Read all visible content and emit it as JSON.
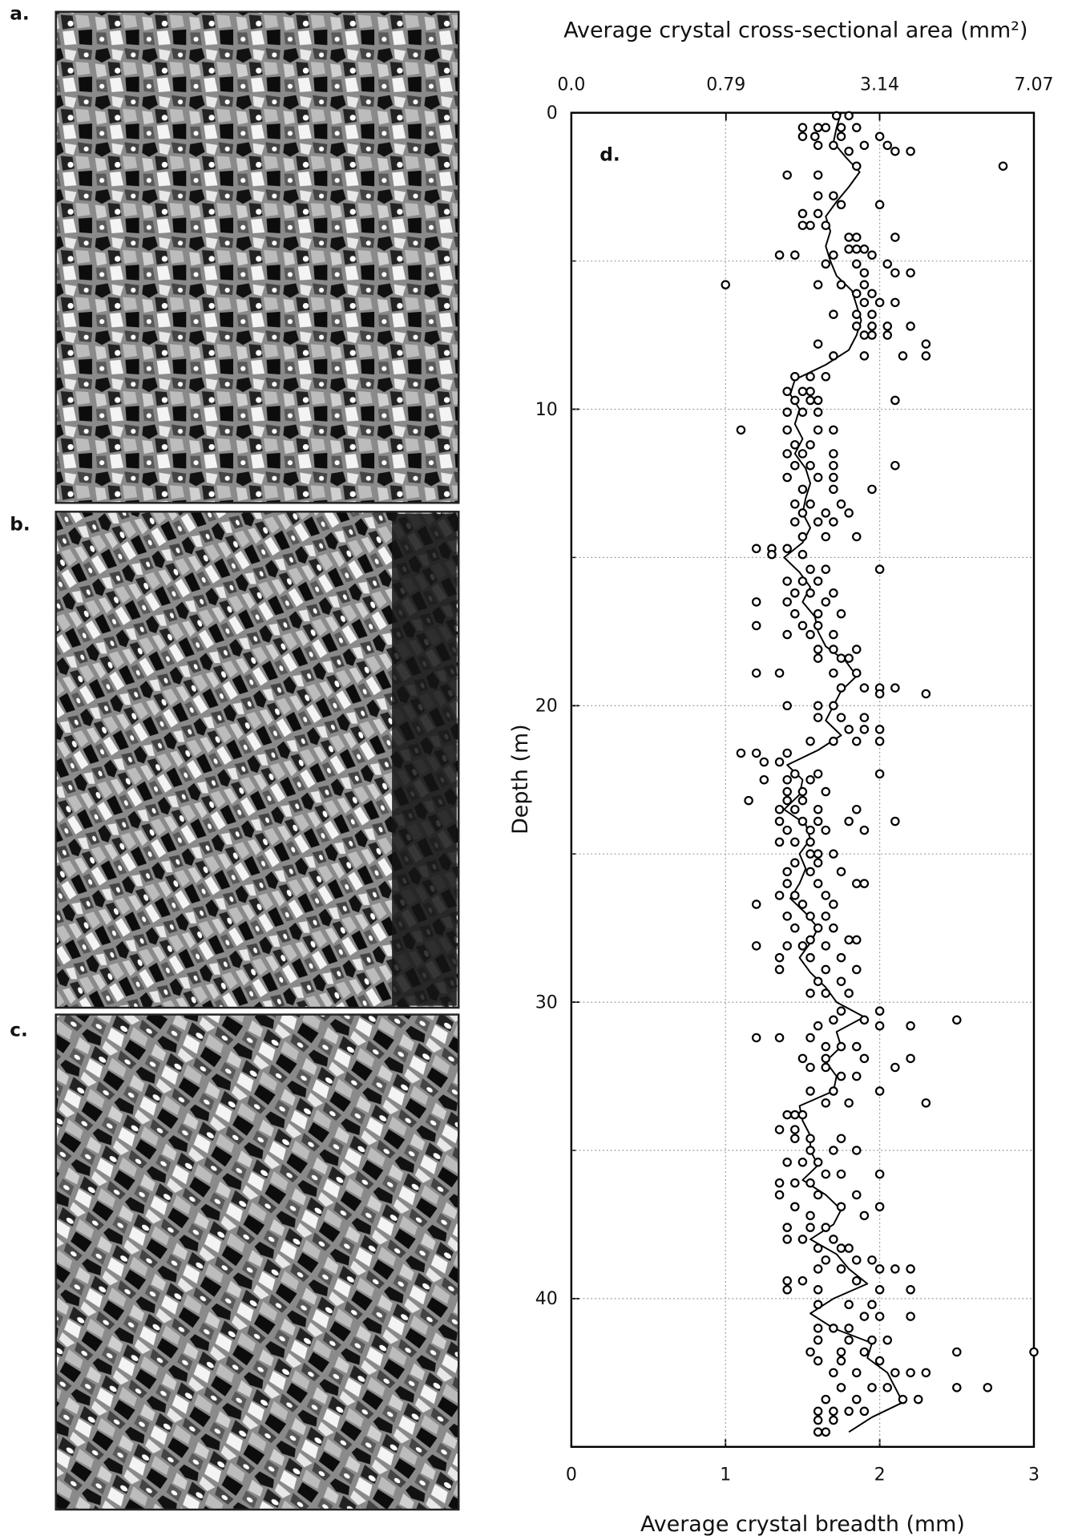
{
  "panel_labels": [
    "a.",
    "b.",
    "c."
  ],
  "chart_data": {
    "type": "profile",
    "panel_label": "d.",
    "title": "Average crystal cross-sectional area (mm²)",
    "xlabel": "Average crystal breadth (mm)",
    "ylabel": "Depth (m)",
    "xlim": [
      0,
      3
    ],
    "xticks": [
      0,
      1,
      2,
      3
    ],
    "x2lim": [
      0,
      7.07
    ],
    "x2ticks": [
      {
        "value": 0,
        "label": "0.0"
      },
      0.79,
      3.14,
      7.07
    ],
    "ylim": [
      0,
      45
    ],
    "yticks": [
      0,
      10,
      20,
      30,
      40
    ],
    "yminorticks": [
      5,
      15,
      25,
      35
    ],
    "y_inverted": true,
    "grid": true,
    "series": [
      {
        "type": "line",
        "color": "#000000",
        "x": [
          1.75,
          1.72,
          1.7,
          1.78,
          1.87,
          1.8,
          1.72,
          1.65,
          1.68,
          1.65,
          1.68,
          1.72,
          1.82,
          1.85,
          1.88,
          1.85,
          1.8,
          1.65,
          1.45,
          1.42,
          1.48,
          1.45,
          1.5,
          1.45,
          1.52,
          1.55,
          1.52,
          1.5,
          1.55,
          1.5,
          1.38,
          1.48,
          1.55,
          1.5,
          1.58,
          1.6,
          1.65,
          1.78,
          1.85,
          1.75,
          1.7,
          1.65,
          1.75,
          1.6,
          1.4,
          1.5,
          1.48,
          1.38,
          1.52,
          1.55,
          1.48,
          1.52,
          1.48,
          1.42,
          1.52,
          1.6,
          1.55,
          1.48,
          1.55,
          1.65,
          1.72,
          1.9,
          1.72,
          1.75,
          1.65,
          1.72,
          1.7,
          1.48,
          1.5,
          1.55,
          1.55,
          1.6,
          1.5,
          1.65,
          1.75,
          1.7,
          1.55,
          1.72,
          1.8,
          1.92,
          1.7,
          1.55,
          1.7,
          1.95,
          1.92,
          2.05,
          2.1,
          2.15,
          1.95,
          1.8
        ],
        "y": [
          0,
          0.5,
          1,
          1.5,
          2,
          2.5,
          3,
          3.5,
          4,
          4.5,
          5,
          5.5,
          6,
          6.5,
          7,
          7.5,
          8,
          8.5,
          9,
          9.5,
          10,
          10.5,
          11,
          11.5,
          12,
          12.5,
          13,
          13.5,
          14,
          14.5,
          15,
          15.5,
          16,
          16.5,
          17,
          17.5,
          18,
          18.5,
          19,
          19.5,
          20,
          20.5,
          21,
          21.5,
          22,
          22.5,
          23,
          23.5,
          24,
          24.5,
          25,
          25.5,
          26,
          26.5,
          27,
          27.5,
          28,
          28.5,
          29,
          29.5,
          30,
          30.5,
          31,
          31.5,
          32,
          32.5,
          33,
          33.5,
          34,
          34.5,
          35,
          35.5,
          36,
          36.5,
          37,
          37.5,
          38,
          38.5,
          39,
          39.5,
          40,
          40.5,
          41,
          41.5,
          42,
          42.5,
          43,
          43.5,
          44,
          44.5
        ]
      },
      {
        "type": "scatter",
        "marker": "open-circle",
        "color": "#000000",
        "x": [
          1.72,
          1.8,
          1.5,
          1.6,
          1.65,
          1.75,
          1.85,
          1.5,
          1.58,
          1.75,
          2.0,
          1.6,
          1.7,
          1.9,
          2.05,
          2.2,
          2.1,
          1.8,
          2.8,
          1.85,
          1.4,
          1.6,
          1.6,
          1.7,
          2.0,
          1.75,
          1.5,
          1.6,
          1.5,
          1.55,
          1.65,
          1.8,
          1.85,
          2.1,
          1.8,
          1.85,
          1.9,
          1.35,
          1.45,
          1.7,
          1.95,
          1.65,
          1.85,
          2.05,
          2.2,
          2.1,
          1.9,
          1.0,
          1.6,
          1.75,
          1.9,
          1.85,
          1.95,
          1.9,
          2.0,
          2.1,
          1.7,
          1.85,
          1.95,
          1.85,
          1.95,
          2.05,
          2.2,
          1.9,
          1.95,
          2.05,
          1.6,
          2.3,
          1.7,
          1.9,
          2.15,
          2.3,
          1.45,
          1.55,
          1.65,
          1.4,
          1.5,
          1.55,
          1.45,
          1.55,
          1.6,
          2.1,
          1.4,
          1.5,
          1.6,
          1.1,
          1.4,
          1.6,
          1.7,
          1.45,
          1.55,
          1.4,
          1.5,
          1.7,
          1.45,
          1.55,
          1.7,
          2.1,
          1.4,
          1.6,
          1.7,
          1.5,
          1.7,
          1.95,
          1.45,
          1.55,
          1.75,
          1.5,
          1.65,
          1.8,
          1.45,
          1.6,
          1.7,
          1.5,
          1.65,
          1.85,
          1.2,
          1.3,
          1.4,
          1.3,
          1.5,
          1.55,
          1.65,
          2.0,
          1.4,
          1.5,
          1.6,
          1.45,
          1.55,
          1.7,
          1.2,
          1.4,
          1.65,
          1.45,
          1.6,
          1.75,
          1.2,
          1.5,
          1.6,
          1.4,
          1.55,
          1.7,
          1.6,
          1.7,
          1.85,
          1.6,
          1.75,
          1.8,
          1.2,
          1.35,
          1.7,
          1.85,
          1.75,
          1.9,
          2.0,
          2.1,
          2.0,
          2.3,
          1.4,
          1.6,
          1.7,
          1.6,
          1.75,
          1.9,
          1.8,
          1.9,
          2.0,
          1.55,
          1.7,
          1.85,
          2.0,
          1.1,
          1.2,
          1.4,
          1.25,
          1.35,
          1.45,
          1.6,
          2.0,
          1.25,
          1.4,
          1.55,
          1.4,
          1.5,
          1.65,
          1.15,
          1.4,
          1.5,
          1.35,
          1.45,
          1.6,
          1.85,
          1.35,
          1.5,
          1.6,
          1.8,
          2.1,
          1.4,
          1.55,
          1.65,
          1.9,
          1.35,
          1.45,
          1.55,
          1.55,
          1.6,
          1.7,
          1.45,
          1.6,
          1.4,
          1.55,
          1.75,
          1.4,
          1.6,
          1.85,
          1.9,
          1.35,
          1.45,
          1.65,
          1.2,
          1.5,
          1.7,
          1.4,
          1.55,
          1.65,
          1.45,
          1.6,
          1.7,
          1.55,
          1.8,
          1.85,
          1.2,
          1.4,
          1.5,
          1.65,
          1.35,
          1.55,
          1.75,
          1.35,
          1.65,
          1.85,
          1.6,
          1.75,
          1.55,
          1.65,
          1.8,
          1.75,
          2.0,
          1.7,
          1.9,
          2.5,
          1.6,
          2.0,
          2.2,
          1.2,
          1.35,
          1.55,
          1.65,
          1.75,
          1.85,
          1.5,
          1.65,
          1.9,
          2.2,
          1.55,
          1.65,
          2.1,
          1.75,
          1.85,
          1.55,
          1.7,
          2.0,
          1.65,
          1.8,
          2.3,
          1.4,
          1.45,
          1.5,
          1.35,
          1.45,
          1.45,
          1.55,
          1.75,
          1.55,
          1.7,
          1.85,
          1.4,
          1.5,
          1.6,
          1.65,
          1.75,
          2.0,
          1.35,
          1.45,
          1.55,
          1.35,
          1.6,
          1.85,
          1.45,
          1.75,
          2.0,
          1.55,
          1.9,
          1.4,
          1.55,
          1.65,
          1.4,
          1.5,
          1.7,
          1.6,
          1.75,
          1.8,
          1.65,
          1.85,
          1.95,
          1.6,
          1.75,
          2.0,
          2.1,
          2.2,
          1.4,
          1.5,
          1.85,
          1.4,
          1.6,
          2.0,
          2.2,
          1.6,
          1.8,
          1.95,
          1.9,
          2.0,
          2.2,
          1.6,
          1.7,
          1.8,
          1.6,
          1.8,
          1.95,
          2.05,
          1.55,
          1.75,
          1.9,
          2.5,
          3.0,
          1.6,
          1.75,
          2.0,
          1.7,
          1.85,
          2.1,
          2.2,
          2.3,
          1.75,
          1.95,
          2.05,
          2.5,
          2.7,
          1.65,
          1.85,
          2.15,
          2.25,
          1.6,
          1.7,
          1.8,
          1.9,
          1.6,
          1.7,
          1.6,
          1.65
        ],
        "y": [
          0.1,
          0.1,
          0.5,
          0.5,
          0.5,
          0.5,
          0.5,
          0.8,
          0.8,
          0.8,
          0.8,
          1.1,
          1.1,
          1.1,
          1.1,
          1.3,
          1.3,
          1.3,
          1.8,
          1.8,
          2.1,
          2.1,
          2.8,
          2.8,
          3.1,
          3.1,
          3.4,
          3.4,
          3.8,
          3.8,
          3.8,
          4.2,
          4.2,
          4.2,
          4.6,
          4.6,
          4.6,
          4.8,
          4.8,
          4.8,
          4.8,
          5.1,
          5.1,
          5.1,
          5.4,
          5.4,
          5.4,
          5.8,
          5.8,
          5.8,
          5.8,
          6.1,
          6.1,
          6.4,
          6.4,
          6.4,
          6.8,
          6.8,
          6.8,
          7.2,
          7.2,
          7.2,
          7.2,
          7.5,
          7.5,
          7.5,
          7.8,
          7.8,
          8.2,
          8.2,
          8.2,
          8.2,
          8.9,
          8.9,
          8.9,
          9.4,
          9.4,
          9.4,
          9.7,
          9.7,
          9.7,
          9.7,
          10.1,
          10.1,
          10.1,
          10.7,
          10.7,
          10.7,
          10.7,
          11.2,
          11.2,
          11.5,
          11.5,
          11.5,
          11.9,
          11.9,
          11.9,
          11.9,
          12.3,
          12.3,
          12.3,
          12.7,
          12.7,
          12.7,
          13.2,
          13.2,
          13.2,
          13.5,
          13.5,
          13.5,
          13.8,
          13.8,
          13.8,
          14.3,
          14.3,
          14.3,
          14.7,
          14.7,
          14.7,
          14.9,
          14.9,
          15.4,
          15.4,
          15.4,
          15.8,
          15.8,
          15.8,
          16.2,
          16.2,
          16.2,
          16.5,
          16.5,
          16.5,
          16.9,
          16.9,
          16.9,
          17.3,
          17.3,
          17.3,
          17.6,
          17.6,
          17.6,
          18.1,
          18.1,
          18.1,
          18.4,
          18.4,
          18.4,
          18.9,
          18.9,
          18.9,
          18.9,
          19.4,
          19.4,
          19.4,
          19.4,
          19.6,
          19.6,
          20,
          20,
          20,
          20.4,
          20.4,
          20.4,
          20.8,
          20.8,
          20.8,
          21.2,
          21.2,
          21.2,
          21.2,
          21.6,
          21.6,
          21.6,
          21.9,
          21.9,
          22.3,
          22.3,
          22.3,
          22.5,
          22.5,
          22.5,
          22.9,
          22.9,
          22.9,
          23.2,
          23.2,
          23.2,
          23.5,
          23.5,
          23.5,
          23.5,
          23.9,
          23.9,
          23.9,
          23.9,
          23.9,
          24.2,
          24.2,
          24.2,
          24.2,
          24.6,
          24.6,
          24.6,
          25,
          25,
          25,
          25.3,
          25.3,
          25.6,
          25.6,
          25.6,
          26,
          26,
          26,
          26,
          26.4,
          26.4,
          26.4,
          26.7,
          26.7,
          26.7,
          27.1,
          27.1,
          27.1,
          27.5,
          27.5,
          27.5,
          27.9,
          27.9,
          27.9,
          28.1,
          28.1,
          28.1,
          28.1,
          28.5,
          28.5,
          28.5,
          28.9,
          28.9,
          28.9,
          29.3,
          29.3,
          29.7,
          29.7,
          29.7,
          30.3,
          30.3,
          30.6,
          30.6,
          30.6,
          30.8,
          30.8,
          30.8,
          31.2,
          31.2,
          31.2,
          31.5,
          31.5,
          31.5,
          31.9,
          31.9,
          31.9,
          31.9,
          32.2,
          32.2,
          32.2,
          32.5,
          32.5,
          33,
          33,
          33,
          33.4,
          33.4,
          33.4,
          33.8,
          33.8,
          33.8,
          34.3,
          34.3,
          34.6,
          34.6,
          34.6,
          35,
          35,
          35,
          35.4,
          35.4,
          35.4,
          35.8,
          35.8,
          35.8,
          36.1,
          36.1,
          36.1,
          36.5,
          36.5,
          36.5,
          36.9,
          36.9,
          36.9,
          37.2,
          37.2,
          37.6,
          37.6,
          37.6,
          38,
          38,
          38,
          38.3,
          38.3,
          38.3,
          38.7,
          38.7,
          38.7,
          39,
          39,
          39,
          39,
          39,
          39.4,
          39.4,
          39.4,
          39.7,
          39.7,
          39.7,
          39.7,
          40.2,
          40.2,
          40.2,
          40.6,
          40.6,
          40.6,
          41,
          41,
          41,
          41.4,
          41.4,
          41.4,
          41.4,
          41.8,
          41.8,
          41.8,
          41.8,
          41.8,
          42.1,
          42.1,
          42.1,
          42.5,
          42.5,
          42.5,
          42.5,
          42.5,
          43,
          43,
          43,
          43,
          43,
          43.4,
          43.4,
          43.4,
          43.4,
          43.8,
          43.8,
          43.8,
          43.8,
          44.1,
          44.1,
          44.5,
          44.5
        ]
      }
    ]
  }
}
